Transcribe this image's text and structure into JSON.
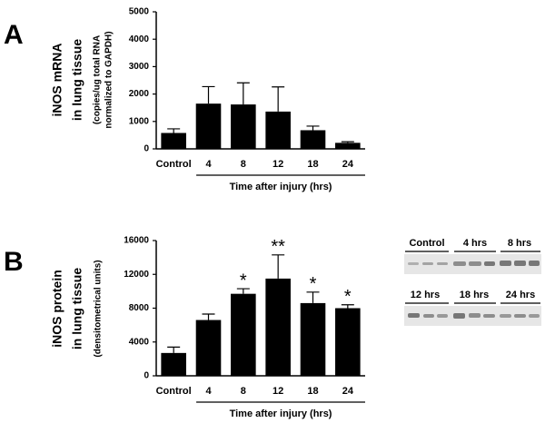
{
  "panel_labels": [
    "A",
    "B"
  ],
  "blot_labels": [
    "Control",
    "4 hrs",
    "8 hrs",
    "12 hrs",
    "18 hrs",
    "24 hrs"
  ],
  "chart_data": [
    {
      "type": "bar",
      "ylabel": [
        "iNOS mRNA",
        "in lung tissue",
        "(copies/ug total RNA",
        "normalized to GAPDH)"
      ],
      "xlabel": "Time after injury (hrs)",
      "categories": [
        "Control",
        "4",
        "8",
        "12",
        "18",
        "24"
      ],
      "values": [
        580,
        1650,
        1620,
        1360,
        680,
        220
      ],
      "errors": [
        150,
        620,
        790,
        900,
        150,
        40
      ],
      "color": "#000000",
      "ylim": [
        0,
        5000
      ],
      "yticks": [
        0,
        1000,
        2000,
        3000,
        4000,
        5000
      ]
    },
    {
      "type": "bar",
      "ylabel": [
        "iNOS protein",
        "in lung tissue",
        "(densitometrical units)"
      ],
      "xlabel": "Time after injury (hrs)",
      "categories": [
        "Control",
        "4",
        "8",
        "12",
        "18",
        "24"
      ],
      "values": [
        2700,
        6600,
        9700,
        11500,
        8600,
        8000
      ],
      "errors": [
        700,
        700,
        600,
        2800,
        1300,
        400
      ],
      "annotations": [
        null,
        null,
        "*",
        "**",
        "*",
        "*"
      ],
      "color": "#000000",
      "ylim": [
        0,
        16000
      ],
      "yticks": [
        0,
        4000,
        8000,
        12000,
        16000
      ]
    }
  ]
}
